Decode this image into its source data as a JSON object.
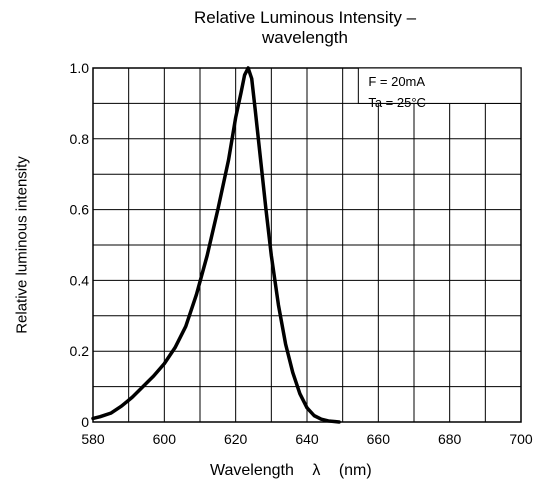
{
  "chart_data": {
    "type": "line",
    "title": [
      "Relative Luminous Intensity –",
      "wavelength"
    ],
    "xlabel": {
      "text": "Wavelength",
      "symbol": "λ",
      "unit": "(nm)"
    },
    "ylabel": "Relative luminous intensity",
    "xlim": [
      580,
      700
    ],
    "ylim": [
      0,
      1.0
    ],
    "x_ticks": [
      580,
      600,
      620,
      640,
      660,
      680,
      700
    ],
    "x_tick_labels": [
      "580",
      "600",
      "620",
      "640",
      "660",
      "680",
      "700"
    ],
    "y_ticks": [
      0,
      0.2,
      0.4,
      0.6,
      0.8,
      1.0
    ],
    "y_tick_labels": [
      "0",
      "0.2",
      "0.4",
      "0.6",
      "0.8",
      "1.0"
    ],
    "x_minor_step": 10,
    "y_minor_step": 0.1,
    "grid": true,
    "annotations": [
      "F = 20mA",
      "Ta = 25°C"
    ],
    "annotation_position": "top-right",
    "series": [
      {
        "x": [
          580,
          582,
          585,
          588,
          591,
          594,
          597,
          600,
          603,
          606,
          609,
          612,
          615,
          618,
          620,
          621.5,
          622.5,
          623.5,
          624.5,
          625.5,
          627,
          628.5,
          630,
          632,
          634,
          636,
          638,
          640,
          642,
          644,
          646,
          648,
          649
        ],
        "values": [
          0.01,
          0.015,
          0.025,
          0.045,
          0.07,
          0.1,
          0.13,
          0.165,
          0.21,
          0.27,
          0.36,
          0.47,
          0.6,
          0.74,
          0.86,
          0.93,
          0.98,
          1.0,
          0.97,
          0.88,
          0.74,
          0.6,
          0.47,
          0.33,
          0.22,
          0.14,
          0.08,
          0.04,
          0.018,
          0.008,
          0.003,
          0.001,
          0.0
        ]
      }
    ],
    "line_color": "#000000"
  }
}
